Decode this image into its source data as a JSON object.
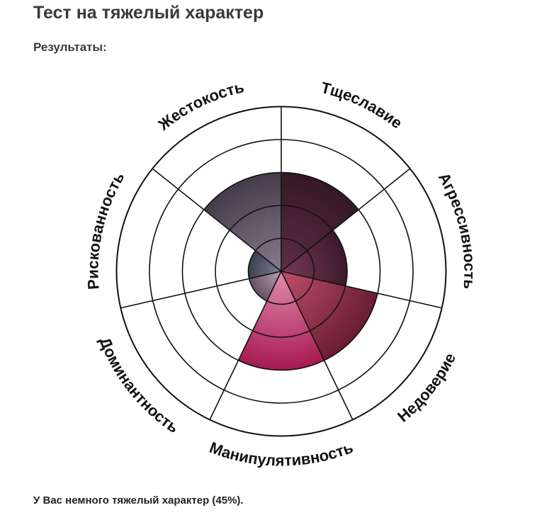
{
  "page": {
    "title": "Тест на тяжелый характер",
    "results_heading": "Результаты:",
    "result_text": "У Вас немного тяжелый характер (45%)."
  },
  "chart_data": {
    "type": "radar",
    "title": "",
    "rings": 5,
    "max": 5,
    "categories": [
      "Тщеславие",
      "Агрессивность",
      "Недоверие",
      "Манипулятивность",
      "Доминантность",
      "Рискованность",
      "Жестокость"
    ],
    "values": [
      3,
      2,
      3,
      3,
      1,
      1,
      3
    ],
    "colors": {
      "Тщеславие": [
        "#5e2e45",
        "#351826"
      ],
      "Агрессивность": [
        "#7a3a57",
        "#3c1a2b"
      ],
      "Недоверие": [
        "#c0506b",
        "#6a1d33"
      ],
      "Манипулятивность": [
        "#e38cad",
        "#a61a50"
      ],
      "Доминантность": [
        "#b8a3b2",
        "#6a4f63"
      ],
      "Рискованность": [
        "#7b8392",
        "#3c3f4f"
      ],
      "Жестокость": [
        "#8b7b8c",
        "#443c4c"
      ]
    },
    "grid_color": "#111111",
    "legend": "none"
  }
}
